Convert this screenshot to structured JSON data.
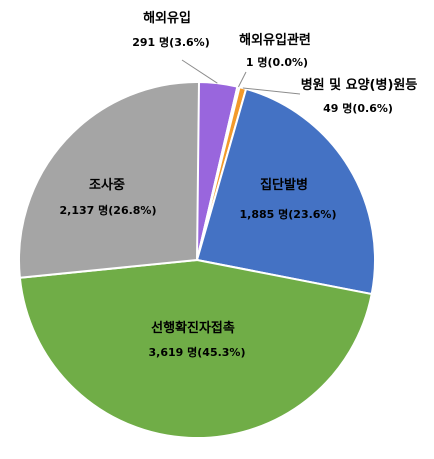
{
  "chart_data": {
    "type": "pie",
    "title": "",
    "slices": [
      {
        "name": "해외유입",
        "count": 291,
        "percent": 3.6,
        "value_label": "291 명(3.6%)",
        "color": "#9966dd"
      },
      {
        "name": "해외유입관련",
        "count": 1,
        "percent": 0.0,
        "value_label": "1 명(0.0%)",
        "color": "#f2c200"
      },
      {
        "name": "병원 및 요양(병)원등",
        "count": 49,
        "percent": 0.6,
        "value_label": "49 명(0.6%)",
        "color": "#f39a2b"
      },
      {
        "name": "집단발병",
        "count": 1885,
        "percent": 23.6,
        "value_label": "1,885 명(23.6%)",
        "color": "#4472c4"
      },
      {
        "name": "선행확진자접촉",
        "count": 3619,
        "percent": 45.3,
        "value_label": "3,619 명(45.3%)",
        "color": "#70ad47"
      },
      {
        "name": "조사중",
        "count": 2137,
        "percent": 26.8,
        "value_label": "2,137 명(26.8%)",
        "color": "#a5a5a5"
      }
    ]
  }
}
